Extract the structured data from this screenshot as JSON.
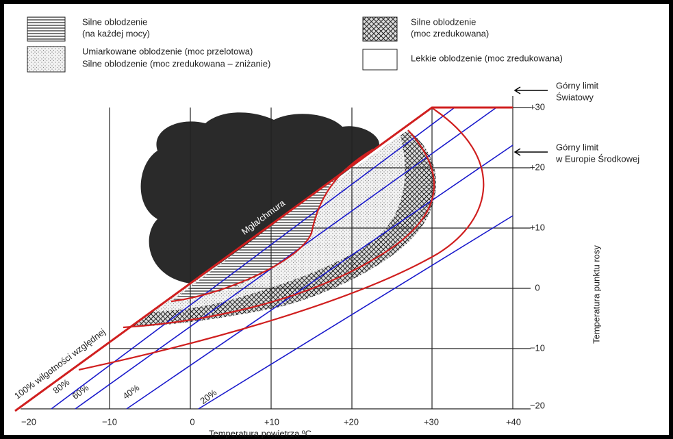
{
  "legend": [
    {
      "line1": "Silne oblodzenie",
      "line2": "(na każdej mocy)"
    },
    {
      "line1": "Umiarkowane oblodzenie (moc przelotowa)",
      "line2": "Silne oblodzenie (moc zredukowana – zniżanie)"
    },
    {
      "line1": "Silne oblodzenie",
      "line2": "(moc zredukowana)"
    },
    {
      "line1": "Lekkie oblodzenie (moc zredukowana)"
    }
  ],
  "notes": [
    {
      "line1": "Górny limit",
      "line2": "Światowy"
    },
    {
      "line1": "Górny limit",
      "line2": "w Europie Środkowej"
    }
  ],
  "axes": {
    "x_ticks": [
      "−20",
      "−10",
      "0",
      "+10",
      "+20",
      "+30",
      "+40"
    ],
    "y_ticks": [
      "+30",
      "+20",
      "+10",
      "0",
      "−10",
      "−20"
    ],
    "x_title": "Temperatura powietrza ºC",
    "y_title": "Temperatura punktu rosy"
  },
  "labels": {
    "fog": "Mgła/chmura",
    "rh100": "100% wilgotności względnej",
    "rh": [
      "80%",
      "60%",
      "40%",
      "20%"
    ]
  }
}
